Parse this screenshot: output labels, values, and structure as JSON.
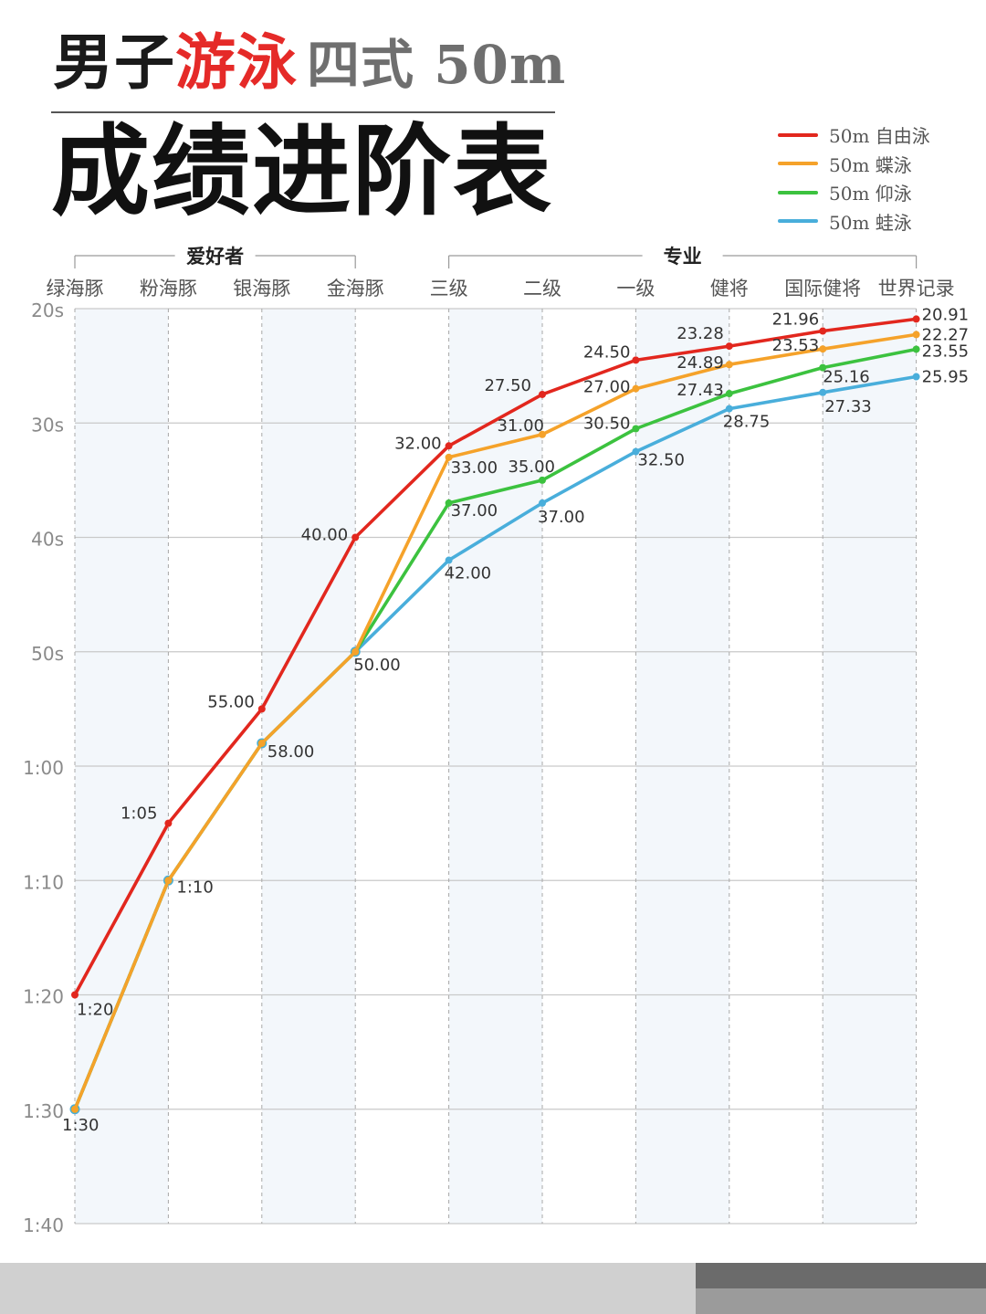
{
  "title": {
    "line1_part1": "男子",
    "line1_highlight": "游泳",
    "line1_sub": "四式 50m",
    "line2": "成绩进阶表"
  },
  "colors": {
    "freestyle": "#e2271e",
    "butterfly": "#f5a22a",
    "backstroke": "#3cc23f",
    "breaststroke": "#49aedb",
    "band": "#f3f7fb"
  },
  "chart_data": {
    "type": "line",
    "groups": [
      {
        "label": "爱好者",
        "from": 0,
        "to": 3
      },
      {
        "label": "专业",
        "from": 4,
        "to": 9
      }
    ],
    "categories": [
      "绿海豚",
      "粉海豚",
      "银海豚",
      "金海豚",
      "三级",
      "二级",
      "一级",
      "健将",
      "国际健将",
      "世界记录"
    ],
    "ylim": [
      20,
      100
    ],
    "y_inverted": true,
    "y_ticks": [
      {
        "value": 20,
        "label": "20s"
      },
      {
        "value": 30,
        "label": "30s"
      },
      {
        "value": 40,
        "label": "40s"
      },
      {
        "value": 50,
        "label": "50s"
      },
      {
        "value": 60,
        "label": "1:00"
      },
      {
        "value": 70,
        "label": "1:10"
      },
      {
        "value": 80,
        "label": "1:20"
      },
      {
        "value": 90,
        "label": "1:30"
      },
      {
        "value": 100,
        "label": "1:40"
      }
    ],
    "legend_position": "top-right",
    "grid": true,
    "series": [
      {
        "name": "50m 自由泳",
        "key": "freestyle",
        "values": [
          80,
          65,
          55,
          40,
          32,
          27.5,
          24.5,
          23.28,
          21.96,
          20.91
        ],
        "labels": [
          "1:20",
          "1:05",
          "55.00",
          "40.00",
          "32.00",
          "27.50",
          "24.50",
          "23.28",
          "21.96",
          "20.91"
        ]
      },
      {
        "name": "50m 蝶泳",
        "key": "butterfly",
        "values": [
          90,
          70,
          58,
          50,
          33,
          31,
          27,
          24.89,
          23.53,
          22.27
        ],
        "labels": [
          "",
          "",
          "",
          "",
          "33.00",
          "31.00",
          "27.00",
          "24.89",
          "23.53",
          "22.27"
        ]
      },
      {
        "name": "50m 仰泳",
        "key": "backstroke",
        "values": [
          90,
          70,
          58,
          50,
          37,
          35,
          30.5,
          27.43,
          25.16,
          23.55
        ],
        "labels": [
          "",
          "",
          "",
          "",
          "37.00",
          "35.00",
          "30.50",
          "27.43",
          "25.16",
          "23.55"
        ]
      },
      {
        "name": "50m 蛙泳",
        "key": "breaststroke",
        "values": [
          90,
          70,
          58,
          50,
          42,
          37,
          32.5,
          28.75,
          27.33,
          25.95
        ],
        "labels": [
          "1:30",
          "1:10",
          "58.00",
          "50.00",
          "42.00",
          "37.00",
          "32.50",
          "28.75",
          "27.33",
          "25.95"
        ]
      }
    ]
  }
}
